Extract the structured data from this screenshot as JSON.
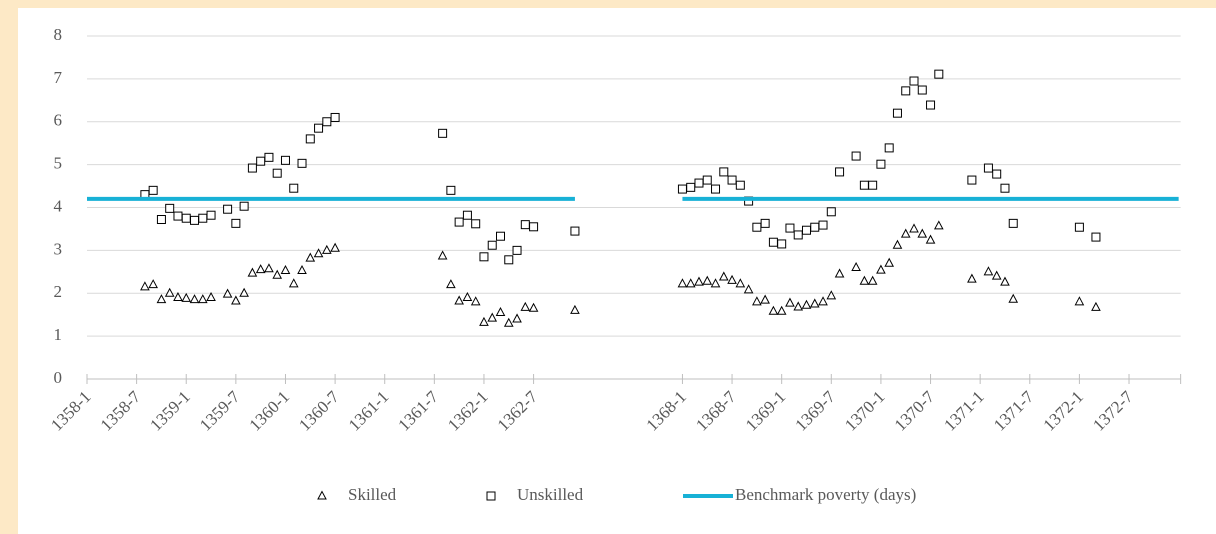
{
  "chart_data": {
    "type": "line",
    "categories": [
      "1358-1",
      null,
      null,
      null,
      null,
      null,
      "1358-7",
      null,
      null,
      null,
      null,
      null,
      "1359-1",
      null,
      null,
      null,
      null,
      null,
      "1359-7",
      null,
      null,
      null,
      null,
      null,
      "1360-1",
      null,
      null,
      null,
      null,
      null,
      "1360-7",
      null,
      null,
      null,
      null,
      null,
      "1361-1",
      null,
      null,
      null,
      null,
      null,
      "1361-7",
      null,
      null,
      null,
      null,
      null,
      "1362-1",
      null,
      null,
      null,
      null,
      null,
      "1362-7",
      null,
      null,
      null,
      null,
      null,
      null,
      null,
      null,
      null,
      null,
      null,
      null,
      null,
      null,
      null,
      null,
      null,
      "1368-1",
      null,
      null,
      null,
      null,
      null,
      "1368-7",
      null,
      null,
      null,
      null,
      null,
      "1369-1",
      null,
      null,
      null,
      null,
      null,
      "1369-7",
      null,
      null,
      null,
      null,
      null,
      "1370-1",
      null,
      null,
      null,
      null,
      null,
      "1370-7",
      null,
      null,
      null,
      null,
      null,
      "1371-1",
      null,
      null,
      null,
      null,
      null,
      "1371-7",
      null,
      null,
      null,
      null,
      null,
      "1372-1",
      null,
      null,
      null,
      null,
      null,
      "1372-7",
      null,
      null,
      null,
      null,
      null,
      null
    ],
    "series": [
      {
        "name": "Skilled",
        "style": "marker",
        "marker": "triangle",
        "color": "#000000",
        "values": [
          null,
          null,
          null,
          null,
          null,
          null,
          null,
          2.15,
          2.2,
          1.85,
          2.0,
          1.9,
          1.88,
          1.85,
          1.85,
          1.9,
          null,
          1.98,
          1.82,
          2.0,
          2.47,
          2.55,
          2.57,
          2.42,
          2.53,
          2.22,
          2.53,
          2.82,
          2.92,
          3.0,
          3.05,
          null,
          null,
          null,
          null,
          null,
          null,
          null,
          null,
          null,
          null,
          null,
          null,
          2.87,
          2.2,
          1.82,
          1.9,
          1.8,
          1.32,
          1.42,
          1.55,
          1.3,
          1.4,
          1.67,
          1.65,
          null,
          null,
          null,
          null,
          1.6,
          null,
          null,
          null,
          null,
          null,
          null,
          null,
          null,
          null,
          null,
          null,
          null,
          2.22,
          2.22,
          2.26,
          2.28,
          2.22,
          2.38,
          2.3,
          2.22,
          2.08,
          1.8,
          1.84,
          1.58,
          1.58,
          1.77,
          1.68,
          1.72,
          1.75,
          1.8,
          1.94,
          2.45,
          null,
          2.6,
          2.28,
          2.28,
          2.54,
          2.7,
          3.12,
          3.38,
          3.5,
          3.38,
          3.24,
          3.57,
          null,
          null,
          null,
          2.33,
          null,
          2.5,
          2.4,
          2.26,
          1.86,
          null,
          null,
          null,
          null,
          null,
          null,
          null,
          1.8,
          null,
          1.67,
          null,
          null,
          null,
          null,
          null,
          null,
          null,
          null,
          null,
          null
        ]
      },
      {
        "name": "Unskilled",
        "style": "marker",
        "marker": "square",
        "color": "#000000",
        "values": [
          null,
          null,
          null,
          null,
          null,
          null,
          null,
          4.3,
          4.4,
          3.72,
          3.98,
          3.8,
          3.75,
          3.7,
          3.75,
          3.82,
          null,
          3.96,
          3.63,
          4.03,
          4.92,
          5.08,
          5.17,
          4.8,
          5.1,
          4.45,
          5.03,
          5.6,
          5.85,
          6.0,
          6.1,
          null,
          null,
          null,
          null,
          null,
          null,
          null,
          null,
          null,
          null,
          null,
          null,
          5.73,
          4.4,
          3.66,
          3.82,
          3.62,
          2.85,
          3.12,
          3.33,
          2.78,
          3.0,
          3.6,
          3.55,
          null,
          null,
          null,
          null,
          3.45,
          null,
          null,
          null,
          null,
          null,
          null,
          null,
          null,
          null,
          null,
          null,
          null,
          4.43,
          4.47,
          4.57,
          4.64,
          4.43,
          4.83,
          4.64,
          4.52,
          4.15,
          3.54,
          3.63,
          3.19,
          3.15,
          3.52,
          3.36,
          3.47,
          3.54,
          3.59,
          3.9,
          4.83,
          null,
          5.2,
          4.52,
          4.52,
          5.01,
          5.39,
          6.2,
          6.72,
          6.95,
          6.74,
          6.39,
          7.11,
          null,
          null,
          null,
          4.64,
          null,
          4.92,
          4.78,
          4.45,
          3.63,
          null,
          null,
          null,
          null,
          null,
          null,
          null,
          3.54,
          null,
          3.31,
          null,
          null,
          null,
          null,
          null,
          null,
          null,
          null,
          null,
          null
        ]
      },
      {
        "name": "Benchmark poverty (days)",
        "style": "line",
        "color": "#17b1d6",
        "values": [
          4.2,
          4.2,
          4.2,
          4.2,
          4.2,
          4.2,
          4.2,
          4.2,
          4.2,
          4.2,
          4.2,
          4.2,
          4.2,
          4.2,
          4.2,
          4.2,
          4.2,
          4.2,
          4.2,
          4.2,
          4.2,
          4.2,
          4.2,
          4.2,
          4.2,
          4.2,
          4.2,
          4.2,
          4.2,
          4.2,
          4.2,
          4.2,
          4.2,
          4.2,
          4.2,
          4.2,
          4.2,
          4.2,
          4.2,
          4.2,
          4.2,
          4.2,
          4.2,
          4.2,
          4.2,
          4.2,
          4.2,
          4.2,
          4.2,
          4.2,
          4.2,
          4.2,
          4.2,
          4.2,
          4.2,
          4.2,
          4.2,
          4.2,
          4.2,
          4.2,
          null,
          null,
          null,
          null,
          null,
          null,
          null,
          null,
          null,
          null,
          null,
          null,
          4.2,
          4.2,
          4.2,
          4.2,
          4.2,
          4.2,
          4.2,
          4.2,
          4.2,
          4.2,
          4.2,
          4.2,
          4.2,
          4.2,
          4.2,
          4.2,
          4.2,
          4.2,
          4.2,
          4.2,
          4.2,
          4.2,
          4.2,
          4.2,
          4.2,
          4.2,
          4.2,
          4.2,
          4.2,
          4.2,
          4.2,
          4.2,
          4.2,
          4.2,
          4.2,
          4.2,
          4.2,
          4.2,
          4.2,
          4.2,
          4.2,
          4.2,
          4.2,
          4.2,
          4.2,
          4.2,
          4.2,
          4.2,
          4.2,
          4.2,
          4.2,
          4.2,
          4.2,
          4.2,
          4.2,
          4.2,
          4.2,
          4.2,
          4.2,
          4.2,
          4.2
        ]
      }
    ],
    "ylim": [
      0,
      8
    ],
    "yticks": [
      0,
      1,
      2,
      3,
      4,
      5,
      6,
      7,
      8
    ],
    "grid": true,
    "legend": "bottom"
  }
}
